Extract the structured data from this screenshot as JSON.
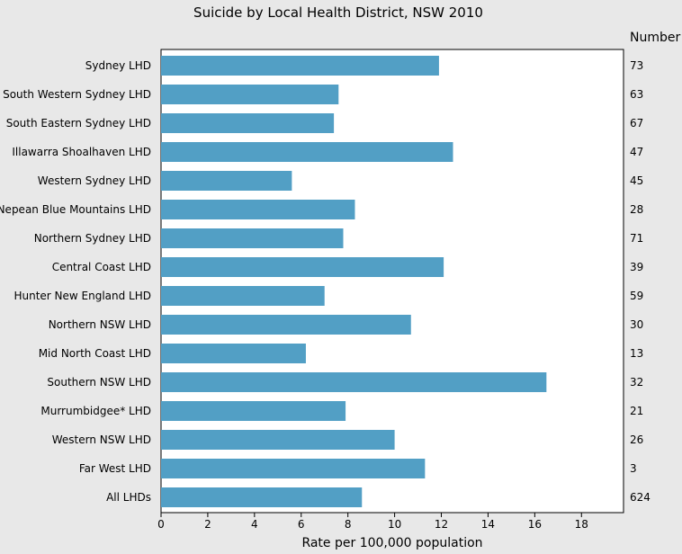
{
  "chart_data": {
    "type": "bar",
    "orientation": "horizontal",
    "title": "Suicide by Local Health District, NSW 2010",
    "xlabel": "Rate per 100,000 population",
    "ylabel": "",
    "number_header": "Number",
    "xlim": [
      0,
      19.8
    ],
    "xticks": [
      0,
      2,
      4,
      6,
      8,
      10,
      12,
      14,
      16,
      18
    ],
    "grid": false,
    "bar_color": "#529fc5",
    "categories": [
      "Sydney LHD",
      "South Western Sydney LHD",
      "South Eastern Sydney LHD",
      "Illawarra Shoalhaven LHD",
      "Western Sydney LHD",
      "Nepean Blue Mountains LHD",
      "Northern Sydney LHD",
      "Central Coast LHD",
      "Hunter New England LHD",
      "Northern NSW LHD",
      "Mid North Coast LHD",
      "Southern NSW LHD",
      "Murrumbidgee* LHD",
      "Western NSW LHD",
      "Far West LHD",
      "All LHDs"
    ],
    "values": [
      11.9,
      7.6,
      7.4,
      12.5,
      5.6,
      8.3,
      7.8,
      12.1,
      7.0,
      10.7,
      6.2,
      16.5,
      7.9,
      10.0,
      11.3,
      8.6
    ],
    "numbers": [
      "73",
      "63",
      "67",
      "47",
      "45",
      "28",
      "71",
      "39",
      "59",
      "30",
      "13",
      "32",
      "21",
      "26",
      "3",
      "624"
    ]
  }
}
